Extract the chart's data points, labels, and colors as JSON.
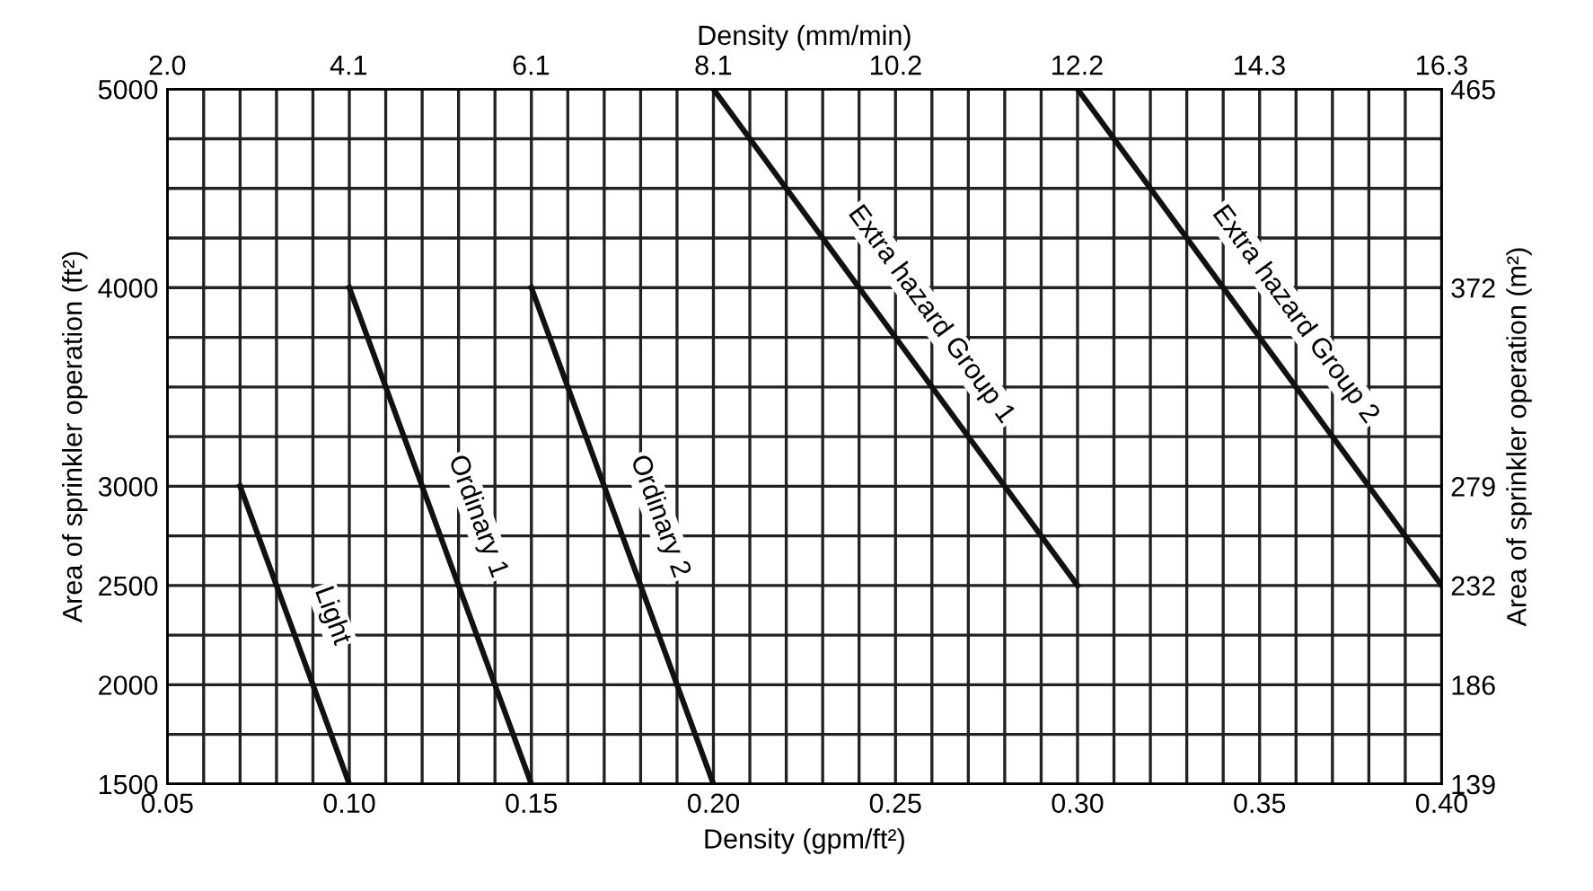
{
  "chart_data": {
    "type": "line",
    "xlabel": "Density (gpm/ft²)",
    "ylabel": "Area of sprinkler operation (ft²)",
    "x2label": "Density (mm/min)",
    "y2label": "Area of sprinkler operation (m²)",
    "xlim": [
      0.05,
      0.4
    ],
    "ylim": [
      1500,
      5000
    ],
    "xticks": [
      0.05,
      {
        "value": 0.06,
        "label": null
      },
      {
        "value": 0.07,
        "label": null
      },
      {
        "value": 0.08,
        "label": null
      },
      {
        "value": 0.09,
        "label": null
      },
      {
        "value": 0.1,
        "label": "0.10"
      },
      {
        "value": 0.11,
        "label": null
      },
      {
        "value": 0.12,
        "label": null
      },
      {
        "value": 0.13,
        "label": null
      },
      {
        "value": 0.14,
        "label": null
      },
      0.15,
      {
        "value": 0.16,
        "label": null
      },
      {
        "value": 0.17,
        "label": null
      },
      {
        "value": 0.18,
        "label": null
      },
      {
        "value": 0.19,
        "label": null
      },
      {
        "value": 0.2,
        "label": "0.20"
      },
      {
        "value": 0.21,
        "label": null
      },
      {
        "value": 0.22,
        "label": null
      },
      {
        "value": 0.23,
        "label": null
      },
      {
        "value": 0.24,
        "label": null
      },
      0.25,
      {
        "value": 0.26,
        "label": null
      },
      {
        "value": 0.27,
        "label": null
      },
      {
        "value": 0.28,
        "label": null
      },
      {
        "value": 0.29,
        "label": null
      },
      {
        "value": 0.3,
        "label": "0.30"
      },
      {
        "value": 0.31,
        "label": null
      },
      {
        "value": 0.32,
        "label": null
      },
      {
        "value": 0.33,
        "label": null
      },
      {
        "value": 0.34,
        "label": null
      },
      0.35,
      {
        "value": 0.36,
        "label": null
      },
      {
        "value": 0.37,
        "label": null
      },
      {
        "value": 0.38,
        "label": null
      },
      {
        "value": 0.39,
        "label": null
      },
      {
        "value": 0.4,
        "label": "0.40"
      }
    ],
    "yticks": [
      1500,
      {
        "value": 1750,
        "label": null
      },
      2000,
      {
        "value": 2250,
        "label": null
      },
      2500,
      {
        "value": 2750,
        "label": null
      },
      3000,
      {
        "value": 3250,
        "label": null
      },
      {
        "value": 3500,
        "label": null
      },
      {
        "value": 3750,
        "label": null
      },
      4000,
      {
        "value": 4250,
        "label": null
      },
      {
        "value": 4500,
        "label": null
      },
      {
        "value": 4750,
        "label": null
      },
      5000
    ],
    "x2lim": [
      2.04,
      16.3
    ],
    "x2ticks": [
      {
        "value": 2.04,
        "label": "2.0"
      },
      {
        "value": 4.07,
        "label": "4.1"
      },
      {
        "value": 6.11,
        "label": "6.1"
      },
      {
        "value": 8.15,
        "label": "8.1"
      },
      {
        "value": 10.19,
        "label": "10.2"
      },
      {
        "value": 12.22,
        "label": "12.2"
      },
      {
        "value": 14.26,
        "label": "14.3"
      },
      {
        "value": 16.3,
        "label": "16.3"
      }
    ],
    "y2lim": [
      139.35,
      464.5
    ],
    "y2ticks": [
      {
        "value": 139.35,
        "label": "139"
      },
      {
        "value": 185.8,
        "label": "186"
      },
      {
        "value": 232.3,
        "label": "232"
      },
      {
        "value": 278.7,
        "label": "279"
      },
      {
        "value": 371.6,
        "label": "372"
      },
      {
        "value": 464.5,
        "label": "465"
      }
    ],
    "grid": true,
    "marker": "none",
    "line_style": "solid",
    "series": [
      {
        "name": "Light",
        "color": "#111111",
        "x": [
          0.07,
          0.1
        ],
        "values": [
          3000,
          1500
        ]
      },
      {
        "name": "Ordinary 1",
        "color": "#111111",
        "x": [
          0.1,
          0.15
        ],
        "values": [
          4000,
          1500
        ]
      },
      {
        "name": "Ordinary 2",
        "color": "#111111",
        "x": [
          0.15,
          0.2
        ],
        "values": [
          4000,
          1500
        ]
      },
      {
        "name": "Extra hazard Group 1",
        "color": "#111111",
        "x": [
          0.2,
          0.3
        ],
        "values": [
          5000,
          2500
        ]
      },
      {
        "name": "Extra hazard Group 2",
        "color": "#111111",
        "x": [
          0.3,
          0.4
        ],
        "values": [
          5000,
          2500
        ]
      }
    ]
  }
}
